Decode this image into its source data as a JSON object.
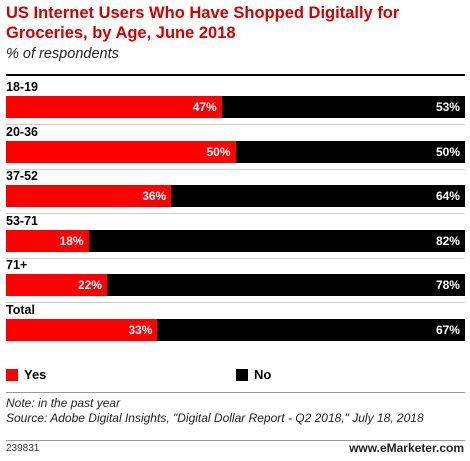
{
  "header": {
    "title": "US Internet Users Who Have Shopped Digitally for Groceries, by Age, June 2018",
    "subtitle": "% of respondents"
  },
  "chart_data": {
    "type": "bar",
    "orientation": "horizontal",
    "stacked": true,
    "categories": [
      "18-19",
      "20-36",
      "37-52",
      "53-71",
      "71+",
      "Total"
    ],
    "series": [
      {
        "name": "Yes",
        "values": [
          47,
          50,
          36,
          18,
          22,
          33
        ],
        "color": "#ff0000"
      },
      {
        "name": "No",
        "values": [
          53,
          50,
          64,
          82,
          78,
          67
        ],
        "color": "#000000"
      }
    ],
    "value_suffix": "%",
    "xlim": [
      0,
      100
    ],
    "legend": "bottom"
  },
  "legend": {
    "yes_label": "Yes",
    "no_label": "No"
  },
  "notes": {
    "note": "Note: in the past year",
    "source": "Source: Adobe Digital Insights, \"Digital Dollar Report - Q2 2018,\" July 18, 2018"
  },
  "footer": {
    "chart_id": "239831",
    "brand": "www.eMarketer.com"
  }
}
